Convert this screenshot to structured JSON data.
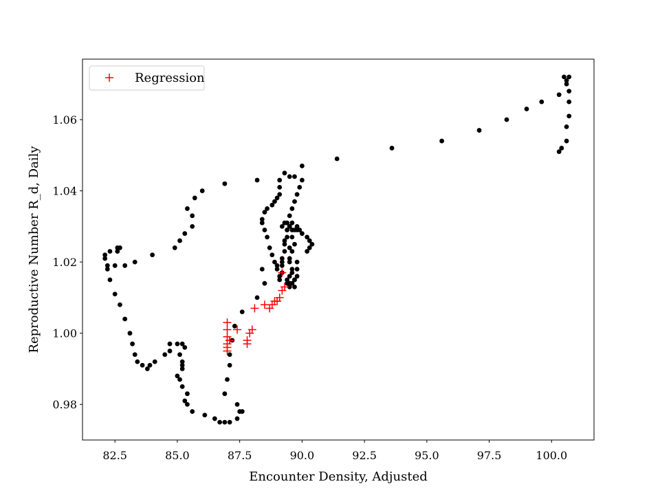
{
  "chart_data": {
    "type": "scatter",
    "xlabel": "Encounter Density, Adjusted",
    "ylabel": "Reproductive Number R_d, Daily",
    "xlim": [
      81.2,
      101.7
    ],
    "ylim": [
      0.97,
      1.077
    ],
    "xticks": [
      82.5,
      85.0,
      87.5,
      90.0,
      92.5,
      95.0,
      97.5,
      100.0
    ],
    "xtick_labels": [
      "82.5",
      "85.0",
      "87.5",
      "90.0",
      "92.5",
      "95.0",
      "97.5",
      "100.0"
    ],
    "yticks": [
      0.98,
      1.0,
      1.02,
      1.04,
      1.06
    ],
    "ytick_labels": [
      "0.98",
      "1.00",
      "1.02",
      "1.04",
      "1.06"
    ],
    "grid": false,
    "legend": {
      "placement": "top-left",
      "entries": [
        "Regression"
      ]
    },
    "series": [
      {
        "marker": "dot",
        "color": "#000000",
        "points": [
          [
            100.5,
            1.072
          ],
          [
            100.7,
            1.072
          ],
          [
            100.6,
            1.071
          ],
          [
            100.6,
            1.07
          ],
          [
            100.7,
            1.068
          ],
          [
            100.3,
            1.067
          ],
          [
            100.7,
            1.065
          ],
          [
            100.7,
            1.061
          ],
          [
            100.6,
            1.058
          ],
          [
            100.6,
            1.054
          ],
          [
            100.4,
            1.052
          ],
          [
            100.3,
            1.051
          ],
          [
            99.6,
            1.065
          ],
          [
            99.0,
            1.063
          ],
          [
            98.2,
            1.06
          ],
          [
            97.1,
            1.057
          ],
          [
            95.6,
            1.054
          ],
          [
            93.6,
            1.052
          ],
          [
            91.4,
            1.049
          ],
          [
            90.0,
            1.047
          ],
          [
            89.3,
            1.045
          ],
          [
            89.5,
            1.044
          ],
          [
            89.7,
            1.044
          ],
          [
            90.0,
            1.043
          ],
          [
            89.9,
            1.041
          ],
          [
            89.8,
            1.039
          ],
          [
            89.7,
            1.037
          ],
          [
            89.6,
            1.035
          ],
          [
            89.5,
            1.033
          ],
          [
            89.4,
            1.031
          ],
          [
            89.4,
            1.029
          ],
          [
            89.4,
            1.027
          ],
          [
            89.3,
            1.025
          ],
          [
            89.3,
            1.023
          ],
          [
            89.2,
            1.021
          ],
          [
            89.2,
            1.019
          ],
          [
            89.2,
            1.017
          ],
          [
            89.1,
            1.016
          ],
          [
            89.1,
            1.015
          ],
          [
            89.0,
            1.018
          ],
          [
            89.1,
            1.043
          ],
          [
            89.1,
            1.041
          ],
          [
            89.1,
            1.039
          ],
          [
            89.0,
            1.038
          ],
          [
            88.9,
            1.037
          ],
          [
            88.8,
            1.036
          ],
          [
            88.6,
            1.035
          ],
          [
            88.5,
            1.034
          ],
          [
            88.4,
            1.032
          ],
          [
            88.4,
            1.031
          ],
          [
            88.5,
            1.029
          ],
          [
            88.6,
            1.027
          ],
          [
            88.7,
            1.024
          ],
          [
            88.8,
            1.022
          ],
          [
            88.9,
            1.02
          ],
          [
            89.0,
            1.019
          ],
          [
            89.2,
            1.02
          ],
          [
            89.5,
            1.021
          ],
          [
            89.8,
            1.02
          ],
          [
            89.6,
            1.017
          ],
          [
            89.7,
            1.015
          ],
          [
            89.5,
            1.014
          ],
          [
            89.4,
            1.015
          ],
          [
            89.5,
            1.016
          ],
          [
            89.6,
            1.018
          ],
          [
            89.5,
            1.02
          ],
          [
            89.8,
            1.018
          ],
          [
            89.8,
            1.016
          ],
          [
            89.7,
            1.015
          ],
          [
            89.6,
            1.014
          ],
          [
            89.5,
            1.013
          ],
          [
            89.4,
            1.014
          ],
          [
            89.7,
            1.013
          ],
          [
            89.5,
            1.03
          ],
          [
            89.6,
            1.029
          ],
          [
            89.8,
            1.029
          ],
          [
            90.0,
            1.028
          ],
          [
            90.2,
            1.027
          ],
          [
            90.3,
            1.026
          ],
          [
            90.4,
            1.025
          ],
          [
            90.3,
            1.024
          ],
          [
            90.2,
            1.023
          ],
          [
            89.7,
            1.029
          ],
          [
            89.8,
            1.03
          ],
          [
            89.9,
            1.029
          ],
          [
            89.6,
            1.027
          ],
          [
            89.7,
            1.025
          ],
          [
            89.5,
            1.024
          ],
          [
            89.6,
            1.023
          ],
          [
            89.3,
            1.026
          ],
          [
            89.4,
            1.029
          ],
          [
            89.2,
            1.03
          ],
          [
            89.3,
            1.031
          ],
          [
            89.6,
            1.031
          ],
          [
            89.5,
            1.03
          ],
          [
            88.4,
            1.018
          ],
          [
            88.5,
            1.014
          ],
          [
            88.2,
            1.01
          ],
          [
            87.6,
            1.006
          ],
          [
            87.3,
            1.002
          ],
          [
            87.2,
            0.998
          ],
          [
            87.1,
            0.994
          ],
          [
            87.1,
            0.991
          ],
          [
            87.0,
            0.987
          ],
          [
            86.9,
            0.983
          ],
          [
            88.2,
            1.043
          ],
          [
            86.9,
            1.042
          ],
          [
            86.0,
            1.04
          ],
          [
            85.7,
            1.038
          ],
          [
            85.4,
            1.035
          ],
          [
            85.6,
            1.033
          ],
          [
            85.6,
            1.03
          ],
          [
            85.3,
            1.028
          ],
          [
            85.1,
            1.026
          ],
          [
            84.9,
            1.024
          ],
          [
            84.0,
            1.022
          ],
          [
            83.3,
            1.02
          ],
          [
            82.9,
            1.019
          ],
          [
            82.5,
            1.019
          ],
          [
            82.2,
            1.018
          ],
          [
            82.2,
            1.019
          ],
          [
            82.1,
            1.021
          ],
          [
            82.1,
            1.022
          ],
          [
            82.3,
            1.023
          ],
          [
            82.6,
            1.024
          ],
          [
            82.7,
            1.024
          ],
          [
            82.6,
            1.023
          ],
          [
            82.3,
            1.015
          ],
          [
            82.5,
            1.011
          ],
          [
            82.7,
            1.008
          ],
          [
            82.9,
            1.004
          ],
          [
            83.1,
            1.0
          ],
          [
            83.2,
            0.997
          ],
          [
            83.3,
            0.994
          ],
          [
            83.4,
            0.992
          ],
          [
            83.6,
            0.991
          ],
          [
            83.8,
            0.99
          ],
          [
            83.9,
            0.991
          ],
          [
            84.1,
            0.992
          ],
          [
            84.5,
            0.994
          ],
          [
            84.7,
            0.995
          ],
          [
            84.7,
            0.997
          ],
          [
            85.0,
            0.997
          ],
          [
            85.2,
            0.997
          ],
          [
            85.3,
            0.996
          ],
          [
            85.1,
            0.994
          ],
          [
            85.2,
            0.992
          ],
          [
            85.2,
            0.991
          ],
          [
            85.2,
            0.99
          ],
          [
            85.0,
            0.988
          ],
          [
            85.1,
            0.987
          ],
          [
            85.2,
            0.985
          ],
          [
            85.4,
            0.983
          ],
          [
            85.3,
            0.981
          ],
          [
            85.4,
            0.98
          ],
          [
            85.6,
            0.978
          ],
          [
            86.1,
            0.977
          ],
          [
            86.5,
            0.976
          ],
          [
            86.7,
            0.975
          ],
          [
            86.9,
            0.975
          ],
          [
            87.1,
            0.975
          ],
          [
            87.4,
            0.976
          ],
          [
            87.5,
            0.978
          ],
          [
            87.6,
            0.978
          ],
          [
            87.4,
            0.98
          ]
        ]
      },
      {
        "name": "Regression",
        "marker": "plus",
        "color": "#ff0000",
        "points": [
          [
            87.0,
            1.003
          ],
          [
            87.0,
            1.001
          ],
          [
            87.0,
            0.999
          ],
          [
            87.1,
            0.998
          ],
          [
            87.0,
            0.997
          ],
          [
            87.0,
            0.996
          ],
          [
            87.0,
            0.995
          ],
          [
            87.1,
            0.998
          ],
          [
            87.4,
            1.001
          ],
          [
            87.8,
            0.998
          ],
          [
            87.8,
            0.997
          ],
          [
            87.9,
            1.0
          ],
          [
            88.0,
            1.001
          ],
          [
            88.1,
            1.007
          ],
          [
            88.5,
            1.008
          ],
          [
            88.7,
            1.007
          ],
          [
            88.8,
            1.008
          ],
          [
            88.9,
            1.009
          ],
          [
            89.0,
            1.009
          ],
          [
            89.1,
            1.01
          ],
          [
            89.2,
            1.012
          ],
          [
            89.3,
            1.013
          ],
          [
            89.2,
            1.017
          ]
        ]
      }
    ]
  }
}
